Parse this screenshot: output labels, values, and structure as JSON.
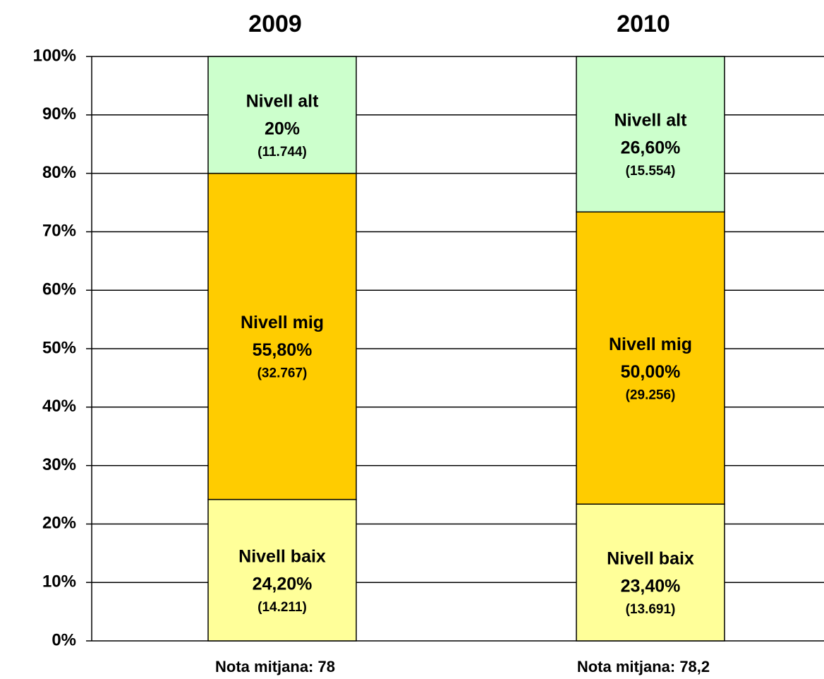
{
  "chart_data": {
    "type": "stacked-bar",
    "categories": [
      "2009",
      "2010"
    ],
    "notes": [
      "Nota mitjana: 78",
      "Nota mitjana: 78,2"
    ],
    "series": [
      {
        "name": "Nivell baix",
        "color": "#ffff99",
        "values": [
          24.2,
          23.4
        ],
        "value_labels": [
          "24,20%",
          "23,40%"
        ],
        "count_labels": [
          "(14.211)",
          "(13.691)"
        ]
      },
      {
        "name": "Nivell mig",
        "color": "#ffcc00",
        "values": [
          55.8,
          50
        ],
        "value_labels": [
          "55,80%",
          "50,00%"
        ],
        "count_labels": [
          "(32.767)",
          "(29.256)"
        ]
      },
      {
        "name": "Nivell alt",
        "color": "#ccffcc",
        "values": [
          20,
          26.6
        ],
        "value_labels": [
          "20%",
          "26,60%"
        ],
        "count_labels": [
          "(11.744)",
          "(15.554)"
        ]
      }
    ],
    "ylim": [
      0,
      100
    ],
    "yticks": [
      {
        "value": 0,
        "label": "0%"
      },
      {
        "value": 10,
        "label": "10%"
      },
      {
        "value": 20,
        "label": "20%"
      },
      {
        "value": 30,
        "label": "30%"
      },
      {
        "value": 40,
        "label": "40%"
      },
      {
        "value": 50,
        "label": "50%"
      },
      {
        "value": 60,
        "label": "60%"
      },
      {
        "value": 70,
        "label": "70%"
      },
      {
        "value": 80,
        "label": "80%"
      },
      {
        "value": 90,
        "label": "90%"
      },
      {
        "value": 100,
        "label": "100%"
      }
    ],
    "grid": true
  }
}
